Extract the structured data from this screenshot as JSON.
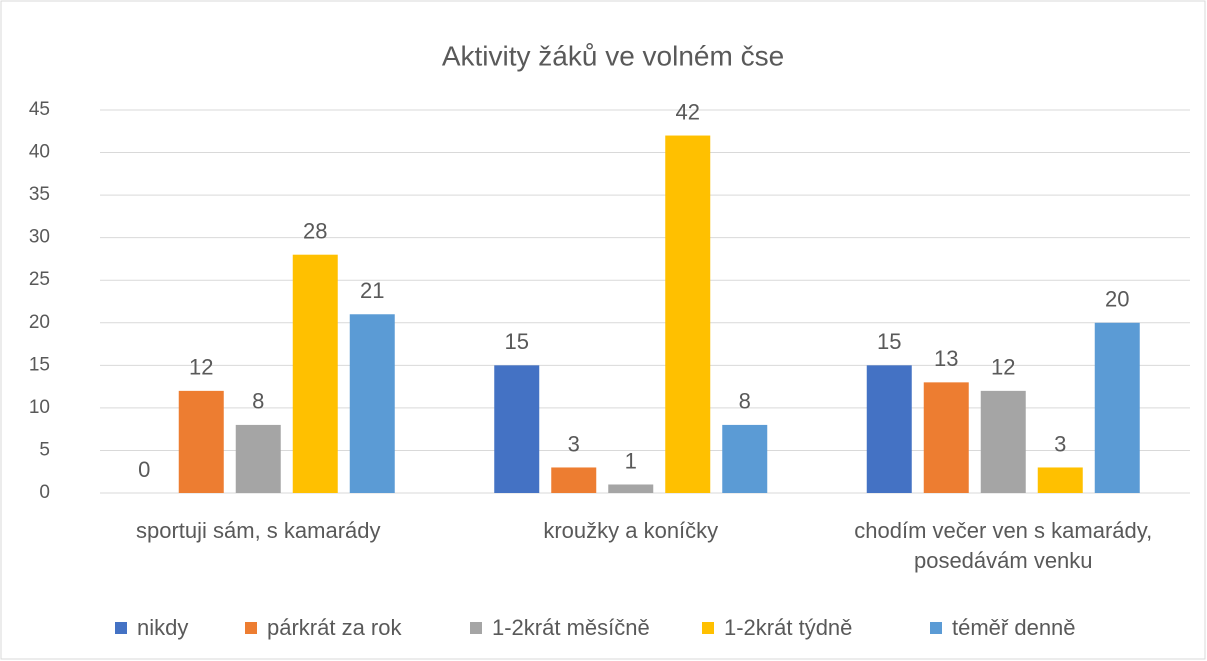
{
  "chart_data": {
    "type": "bar",
    "title": "Aktivity žáků ve volném čse",
    "categories": [
      "sportuji sám, s kamarády",
      "kroužky a koníčky",
      "chodím večer ven s kamarády, posedávám venku"
    ],
    "series": [
      {
        "name": "nikdy",
        "color": "#4472c4",
        "values": [
          0,
          15,
          15
        ]
      },
      {
        "name": "párkrát za rok",
        "color": "#ed7d31",
        "values": [
          12,
          3,
          13
        ]
      },
      {
        "name": "1-2krát měsíčně",
        "color": "#a5a5a5",
        "values": [
          8,
          1,
          12
        ]
      },
      {
        "name": "1-2krát týdně",
        "color": "#ffc000",
        "values": [
          28,
          42,
          3
        ]
      },
      {
        "name": "téměř denně",
        "color": "#5b9bd5",
        "values": [
          21,
          8,
          20
        ]
      }
    ],
    "ylim": [
      0,
      45
    ],
    "yticks": [
      0,
      5,
      10,
      15,
      20,
      25,
      30,
      35,
      40,
      45
    ],
    "grid": true,
    "legend": "bottom"
  }
}
